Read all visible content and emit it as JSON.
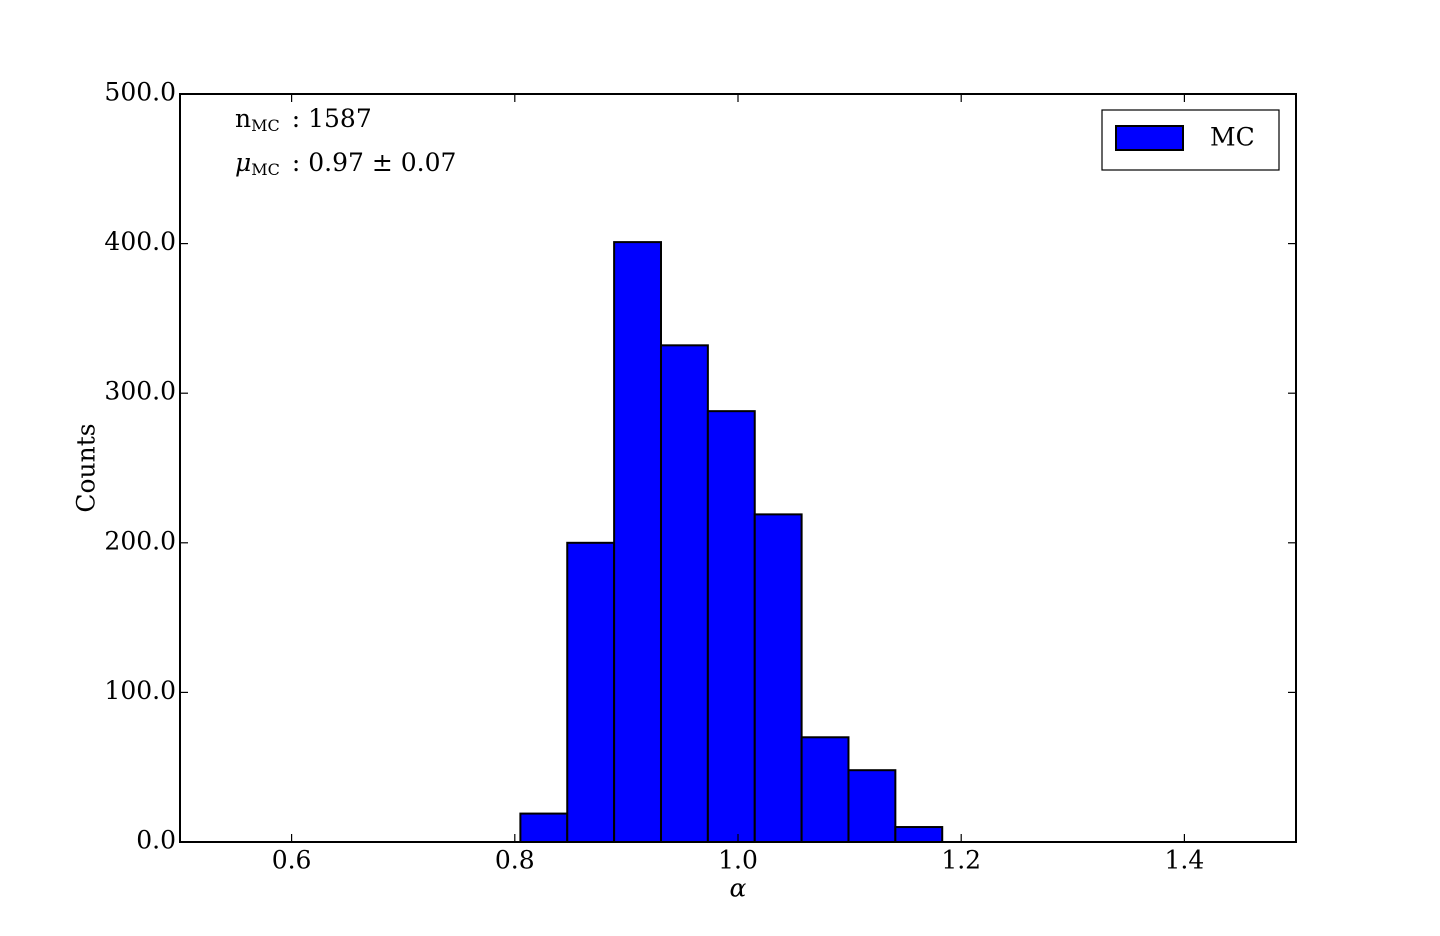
{
  "chart_data": {
    "type": "histogram",
    "bins": [
      0.679,
      0.721,
      0.763,
      0.805,
      0.847,
      0.889,
      0.931,
      0.973,
      1.015,
      1.057,
      1.099,
      1.141,
      1.183,
      1.225,
      1.267
    ],
    "series": [
      {
        "name": "MC",
        "color": "#0000ff",
        "values": [
          0,
          0,
          0,
          19,
          200,
          401,
          332,
          288,
          219,
          70,
          48,
          10,
          0,
          0
        ]
      }
    ],
    "xlabel": "α",
    "ylabel": "Counts",
    "xlim": [
      0.5,
      1.5
    ],
    "xticks": [
      0.6,
      0.8,
      {
        "value": 1.0,
        "label": "1.0"
      },
      1.2,
      1.4
    ],
    "ylim": [
      0,
      500
    ],
    "yticks": [
      {
        "value": 0,
        "label": "0.0"
      },
      {
        "value": 100,
        "label": "100.0"
      },
      {
        "value": 200,
        "label": "200.0"
      },
      {
        "value": 300,
        "label": "300.0"
      },
      {
        "value": 400,
        "label": "400.0"
      },
      {
        "value": 500,
        "label": "500.0"
      }
    ],
    "annotations": [
      {
        "symbol": "n",
        "subscript": "MC",
        "text": ": 1587"
      },
      {
        "symbol": "μ",
        "subscript": "MC",
        "text": ": 0.97 ± 0.07"
      }
    ],
    "legend": "upper right"
  }
}
